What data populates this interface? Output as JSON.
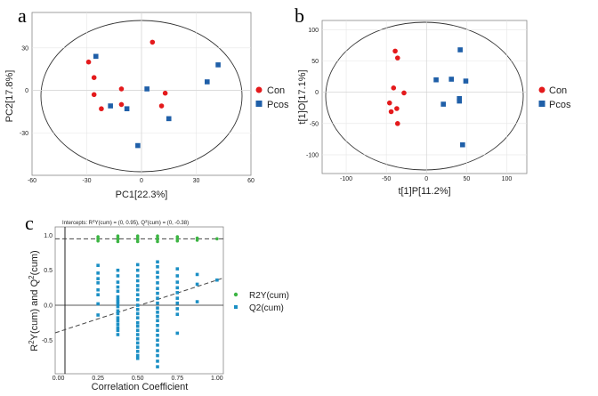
{
  "chart_data": [
    {
      "panel": "a",
      "type": "scatter",
      "title": "",
      "xlabel": "PC1[22.3%]",
      "ylabel": "PC2[17.8%]",
      "xlim": [
        -60,
        60
      ],
      "ylim": [
        -60,
        55
      ],
      "xticks": [
        -60,
        -30,
        0,
        30,
        60
      ],
      "yticks": [
        -30,
        0,
        30
      ],
      "ellipse": true,
      "legend": "right",
      "series": [
        {
          "name": "Con",
          "color": "#e41a1c",
          "marker": "circle",
          "points": [
            [
              -29,
              20
            ],
            [
              -26,
              9
            ],
            [
              -26,
              -3
            ],
            [
              -22,
              -13
            ],
            [
              -11,
              1
            ],
            [
              -11,
              -10
            ],
            [
              6,
              34
            ],
            [
              11,
              -11
            ],
            [
              13,
              -2
            ]
          ]
        },
        {
          "name": "Pcos",
          "color": "#1f5fa8",
          "marker": "square",
          "points": [
            [
              -25,
              24
            ],
            [
              -17,
              -11
            ],
            [
              -8,
              -13
            ],
            [
              -2,
              -39
            ],
            [
              3,
              1
            ],
            [
              15,
              -20
            ],
            [
              36,
              6
            ],
            [
              42,
              18
            ]
          ]
        }
      ]
    },
    {
      "panel": "b",
      "type": "scatter",
      "title": "",
      "xlabel": "t[1]P[11.2%]",
      "ylabel": "t[1]O[17.1%]",
      "xlim": [
        -130,
        125
      ],
      "ylim": [
        -130,
        115
      ],
      "xticks": [
        -100,
        -50,
        0,
        50,
        100
      ],
      "yticks": [
        -100,
        -50,
        0,
        50,
        100
      ],
      "ellipse": true,
      "legend": "right",
      "series": [
        {
          "name": "Con",
          "color": "#e41a1c",
          "marker": "circle",
          "points": [
            [
              -39,
              66
            ],
            [
              -36,
              55
            ],
            [
              -41,
              7
            ],
            [
              -46,
              -17
            ],
            [
              -44,
              -31
            ],
            [
              -37,
              -26
            ],
            [
              -36,
              -50
            ],
            [
              -28,
              -1
            ]
          ]
        },
        {
          "name": "Pcos",
          "color": "#1f5fa8",
          "marker": "square",
          "points": [
            [
              42,
              68
            ],
            [
              12,
              20
            ],
            [
              31,
              21
            ],
            [
              49,
              18
            ],
            [
              21,
              -19
            ],
            [
              41,
              -10
            ],
            [
              41,
              -14
            ],
            [
              45,
              -84
            ]
          ]
        }
      ]
    },
    {
      "panel": "c",
      "type": "scatter",
      "title": "Intercepts: R2Y(cum) = (0, 0.95), Q2(cum) = (0, -0.38)",
      "title_parts": {
        "prefix": "Intercepts: R",
        "sup1": "2",
        "middle": "Y(cum) = (0, 0.95), Q",
        "sup2": "2",
        "suffix": "(cum) = (0, -0.38)"
      },
      "xlabel": "Correlation Coefficient",
      "ylabel_parts": {
        "a": "R",
        "b": "2",
        "c": "Y(cum) and Q",
        "d": "2",
        "e": "(cum)"
      },
      "xlim": [
        -0.02,
        1.04
      ],
      "ylim": [
        -0.98,
        1.12
      ],
      "xticks": [
        0.0,
        0.25,
        0.5,
        0.75,
        1.0
      ],
      "xtick_labels": [
        "0.00",
        "0.25",
        "0.50",
        "0.75",
        "1.00"
      ],
      "yticks": [
        -0.5,
        0.0,
        0.5,
        1.0
      ],
      "ytick_labels": [
        "-0.5",
        "0.0",
        "0.5",
        "1.0"
      ],
      "legend": "right",
      "series": [
        {
          "name": "R2Y(cum)",
          "color": "#3cb543",
          "marker": "circle",
          "x": [
            0.25,
            0.25,
            0.25,
            0.375,
            0.375,
            0.375,
            0.375,
            0.5,
            0.5,
            0.5,
            0.5,
            0.625,
            0.625,
            0.625,
            0.625,
            0.75,
            0.75,
            0.75,
            0.875,
            0.875,
            1.0
          ],
          "y": [
            0.92,
            0.95,
            0.98,
            0.91,
            0.94,
            0.96,
            0.99,
            0.91,
            0.94,
            0.96,
            0.99,
            0.91,
            0.94,
            0.96,
            0.99,
            0.92,
            0.95,
            0.98,
            0.93,
            0.96,
            0.95
          ]
        },
        {
          "name": "Q2(cum)",
          "color": "#1b8fc4",
          "marker": "square",
          "x": [
            0.25,
            0.25,
            0.25,
            0.25,
            0.25,
            0.25,
            0.25,
            0.25,
            0.375,
            0.375,
            0.375,
            0.375,
            0.375,
            0.375,
            0.375,
            0.375,
            0.375,
            0.375,
            0.375,
            0.375,
            0.375,
            0.375,
            0.375,
            0.375,
            0.375,
            0.375,
            0.5,
            0.5,
            0.5,
            0.5,
            0.5,
            0.5,
            0.5,
            0.5,
            0.5,
            0.5,
            0.5,
            0.5,
            0.5,
            0.5,
            0.5,
            0.5,
            0.5,
            0.5,
            0.5,
            0.5,
            0.5,
            0.5,
            0.625,
            0.625,
            0.625,
            0.625,
            0.625,
            0.625,
            0.625,
            0.625,
            0.625,
            0.625,
            0.625,
            0.625,
            0.625,
            0.625,
            0.625,
            0.625,
            0.625,
            0.625,
            0.625,
            0.625,
            0.625,
            0.625,
            0.75,
            0.75,
            0.75,
            0.75,
            0.75,
            0.75,
            0.75,
            0.75,
            0.75,
            0.75,
            0.875,
            0.875,
            0.875,
            1.0
          ],
          "y": [
            0.57,
            0.46,
            0.38,
            0.32,
            0.22,
            0.15,
            0.02,
            -0.14,
            0.5,
            0.42,
            0.33,
            0.26,
            0.2,
            0.12,
            0.05,
            -0.02,
            -0.08,
            -0.12,
            -0.18,
            -0.22,
            -0.27,
            -0.32,
            -0.36,
            -0.42,
            0.02,
            0.08,
            0.58,
            0.5,
            0.42,
            0.35,
            0.28,
            0.22,
            0.15,
            0.08,
            0.0,
            -0.06,
            -0.12,
            -0.18,
            -0.25,
            -0.3,
            -0.36,
            -0.42,
            -0.48,
            -0.54,
            -0.6,
            -0.66,
            -0.72,
            -0.76,
            0.62,
            0.55,
            0.47,
            0.4,
            0.32,
            0.24,
            0.17,
            0.1,
            0.03,
            -0.04,
            -0.1,
            -0.16,
            -0.22,
            -0.29,
            -0.36,
            -0.43,
            -0.5,
            -0.57,
            -0.65,
            -0.72,
            -0.8,
            -0.88,
            0.52,
            0.42,
            0.33,
            0.25,
            0.18,
            0.1,
            0.03,
            -0.05,
            -0.13,
            -0.4,
            0.44,
            0.3,
            0.05,
            0.36
          ]
        }
      ],
      "regression_lines": [
        {
          "name": "R2Y(cum) fit",
          "color": "#444444",
          "from": [
            0.0,
            0.95
          ],
          "to": [
            1.0,
            0.95
          ]
        },
        {
          "name": "Q2(cum) fit",
          "color": "#444444",
          "from": [
            0.0,
            -0.38
          ],
          "to": [
            1.0,
            0.36
          ]
        }
      ]
    }
  ]
}
